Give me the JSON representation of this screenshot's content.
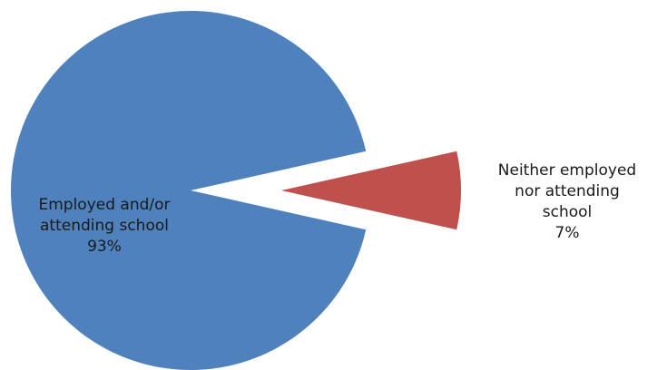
{
  "chart_data": {
    "type": "pie",
    "title": "",
    "slices": [
      {
        "label": "Employed and/or attending school",
        "value": 93,
        "percent_label": "93%",
        "label_lines": [
          "Employed and/or",
          "attending school",
          "93%"
        ],
        "color": "#4F81BD",
        "exploded": false
      },
      {
        "label": "Neither employed nor attending school",
        "value": 7,
        "percent_label": "7%",
        "label_lines": [
          "Neither employed",
          "nor attending",
          "school",
          "7%"
        ],
        "color": "#C0504D",
        "exploded": true
      }
    ]
  }
}
